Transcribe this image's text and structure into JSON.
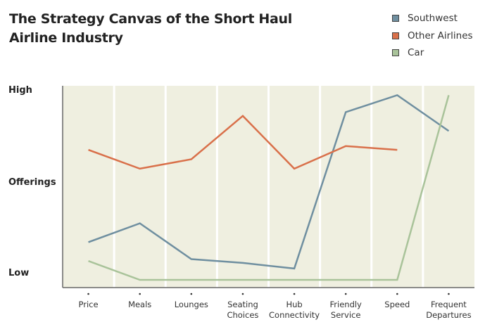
{
  "chart_data": {
    "type": "line",
    "title": "The Strategy Canvas of the Short Haul Airline Industry",
    "title_lines": [
      "The Strategy Canvas of the Short Haul",
      "Airline Industry"
    ],
    "categories": [
      [
        "Price"
      ],
      [
        "Meals"
      ],
      [
        "Lounges"
      ],
      [
        "Seating",
        "Choices"
      ],
      [
        "Hub",
        "Connectivity"
      ],
      [
        "Friendly",
        "Service"
      ],
      [
        "Speed"
      ],
      [
        "Frequent",
        "Departures"
      ]
    ],
    "y_tick_labels": {
      "high": "High",
      "mid": "Offerings",
      "low": "Low"
    },
    "ylim": [
      0,
      10
    ],
    "grid": "vertical white separators",
    "legend_position": "top-right",
    "background": "#efefe0",
    "series": [
      {
        "name": "Southwest",
        "color": "#6f8fa0",
        "values": [
          2.0,
          3.0,
          1.1,
          0.9,
          0.6,
          8.9,
          9.8,
          7.9
        ]
      },
      {
        "name": "Other Airlines",
        "color": "#d9704a",
        "values": [
          6.9,
          5.9,
          6.4,
          8.7,
          5.9,
          7.1,
          6.9,
          null
        ]
      },
      {
        "name": "Car",
        "color": "#a9c39a",
        "values": [
          1.0,
          0,
          0,
          0,
          0,
          0,
          0,
          9.8
        ]
      }
    ]
  }
}
